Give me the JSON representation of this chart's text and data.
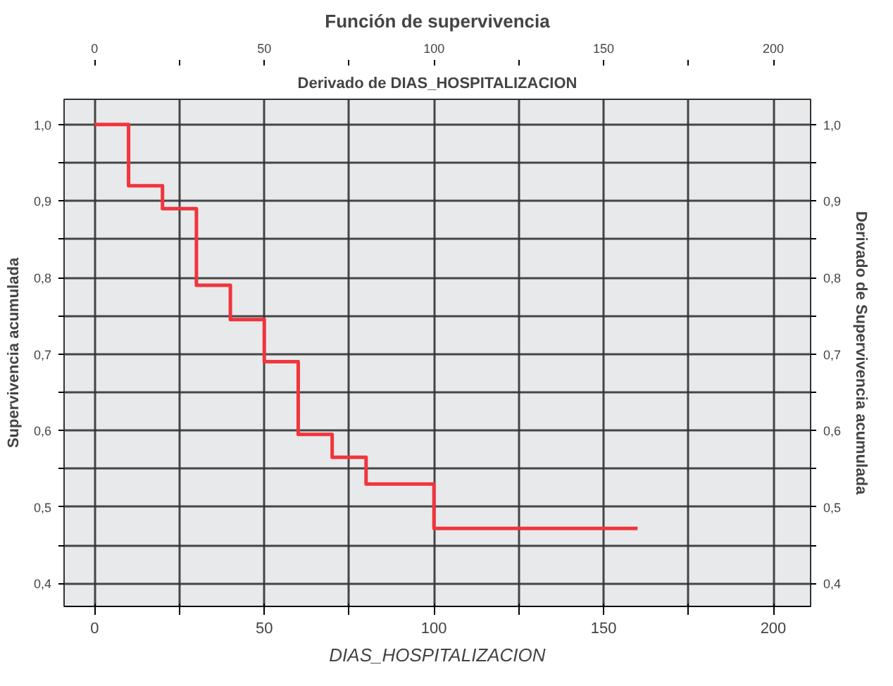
{
  "chart_data": {
    "type": "step",
    "title": "Función de supervivencia",
    "subtitle": "Derivado de DIAS_HOSPITALIZACION",
    "xlabel": "DIAS_HOSPITALIZACION",
    "x2label": null,
    "ylabel": "Supervivencia acumulada",
    "y2label": "Derivado de Supervivencia acumulada",
    "x": [
      0,
      10,
      20,
      30,
      40,
      50,
      60,
      70,
      80,
      100,
      160
    ],
    "series": [
      {
        "color": "#f0353d",
        "values": [
          1.0,
          0.92,
          0.89,
          0.79,
          0.745,
          0.69,
          0.595,
          0.565,
          0.53,
          0.472,
          0.472
        ]
      }
    ],
    "xlim": [
      -9,
      211
    ],
    "ylim": [
      0.37,
      1.033
    ],
    "xticks": [
      0,
      {
        "value": 25,
        "label": null
      },
      50,
      {
        "value": 75,
        "label": null
      },
      100,
      {
        "value": 125,
        "label": null
      },
      150,
      {
        "value": 175,
        "label": null
      },
      200
    ],
    "x2lim": [
      -9,
      211
    ],
    "x2ticks": [
      0,
      {
        "value": 25,
        "label": null
      },
      50,
      {
        "value": 75,
        "label": null
      },
      100,
      {
        "value": 125,
        "label": null
      },
      150,
      {
        "value": 175,
        "label": null
      },
      200
    ],
    "yticks": [
      {
        "value": 0.4,
        "label": "0,4"
      },
      {
        "value": 0.45,
        "label": null
      },
      {
        "value": 0.5,
        "label": "0,5"
      },
      {
        "value": 0.55,
        "label": null
      },
      {
        "value": 0.6,
        "label": "0,6"
      },
      {
        "value": 0.65,
        "label": null
      },
      {
        "value": 0.7,
        "label": "0,7"
      },
      {
        "value": 0.75,
        "label": null
      },
      {
        "value": 0.8,
        "label": "0,8"
      },
      {
        "value": 0.85,
        "label": null
      },
      {
        "value": 0.9,
        "label": "0,9"
      },
      {
        "value": 0.95,
        "label": null
      },
      {
        "value": 1.0,
        "label": "1,0"
      }
    ],
    "y2lim": [
      0.37,
      1.033
    ],
    "y2ticks": [
      {
        "value": 0.4,
        "label": "0,4"
      },
      {
        "value": 0.45,
        "label": null
      },
      {
        "value": 0.5,
        "label": "0,5"
      },
      {
        "value": 0.55,
        "label": null
      },
      {
        "value": 0.6,
        "label": "0,6"
      },
      {
        "value": 0.65,
        "label": null
      },
      {
        "value": 0.7,
        "label": "0,7"
      },
      {
        "value": 0.75,
        "label": null
      },
      {
        "value": 0.8,
        "label": "0,8"
      },
      {
        "value": 0.85,
        "label": null
      },
      {
        "value": 0.9,
        "label": "0,9"
      },
      {
        "value": 0.95,
        "label": null
      },
      {
        "value": 1.0,
        "label": "1,0"
      }
    ],
    "grid": true,
    "line_style": "solid"
  }
}
